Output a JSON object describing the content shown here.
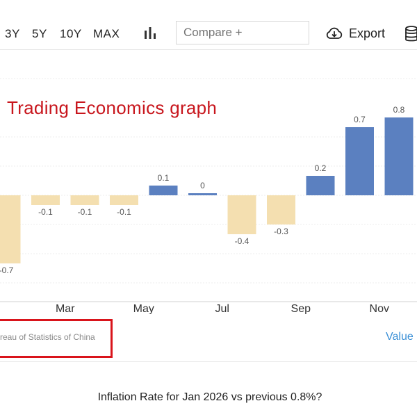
{
  "toolbar": {
    "ranges": [
      "3Y",
      "5Y",
      "10Y",
      "MAX"
    ],
    "chart_type_icon": "bar-chart-icon",
    "compare_placeholder": "Compare +",
    "export_label": "Export",
    "export_icon": "cloud-download-icon",
    "database_icon": "database-icon"
  },
  "overlay": {
    "title": "Trading Economics graph"
  },
  "footer": {
    "source": "reau of Statistics of China",
    "value_link": "Value",
    "question": "Inflation Rate for Jan 2026 vs previous 0.8%?"
  },
  "colors": {
    "positive_bar": "#5b80c0",
    "negative_bar": "#f4dfb0",
    "annotation_red": "#c8161d",
    "link_blue": "#3a8fd6"
  },
  "chart_data": {
    "type": "bar",
    "values": [
      -0.7,
      -0.1,
      -0.1,
      -0.1,
      0.1,
      0,
      -0.4,
      -0.3,
      0.2,
      0.7,
      0.8
    ],
    "labels": [
      "-0.7",
      "-0.1",
      "-0.1",
      "-0.1",
      "0.1",
      "0",
      "-0.4",
      "-0.3",
      "0.2",
      "0.7",
      "0.8"
    ],
    "x_ticks": [
      "Mar",
      "May",
      "Jul",
      "Sep",
      "Nov"
    ],
    "x_tick_bar_index": [
      1.5,
      3.5,
      5.5,
      7.5,
      9.5
    ],
    "grid": true
  }
}
